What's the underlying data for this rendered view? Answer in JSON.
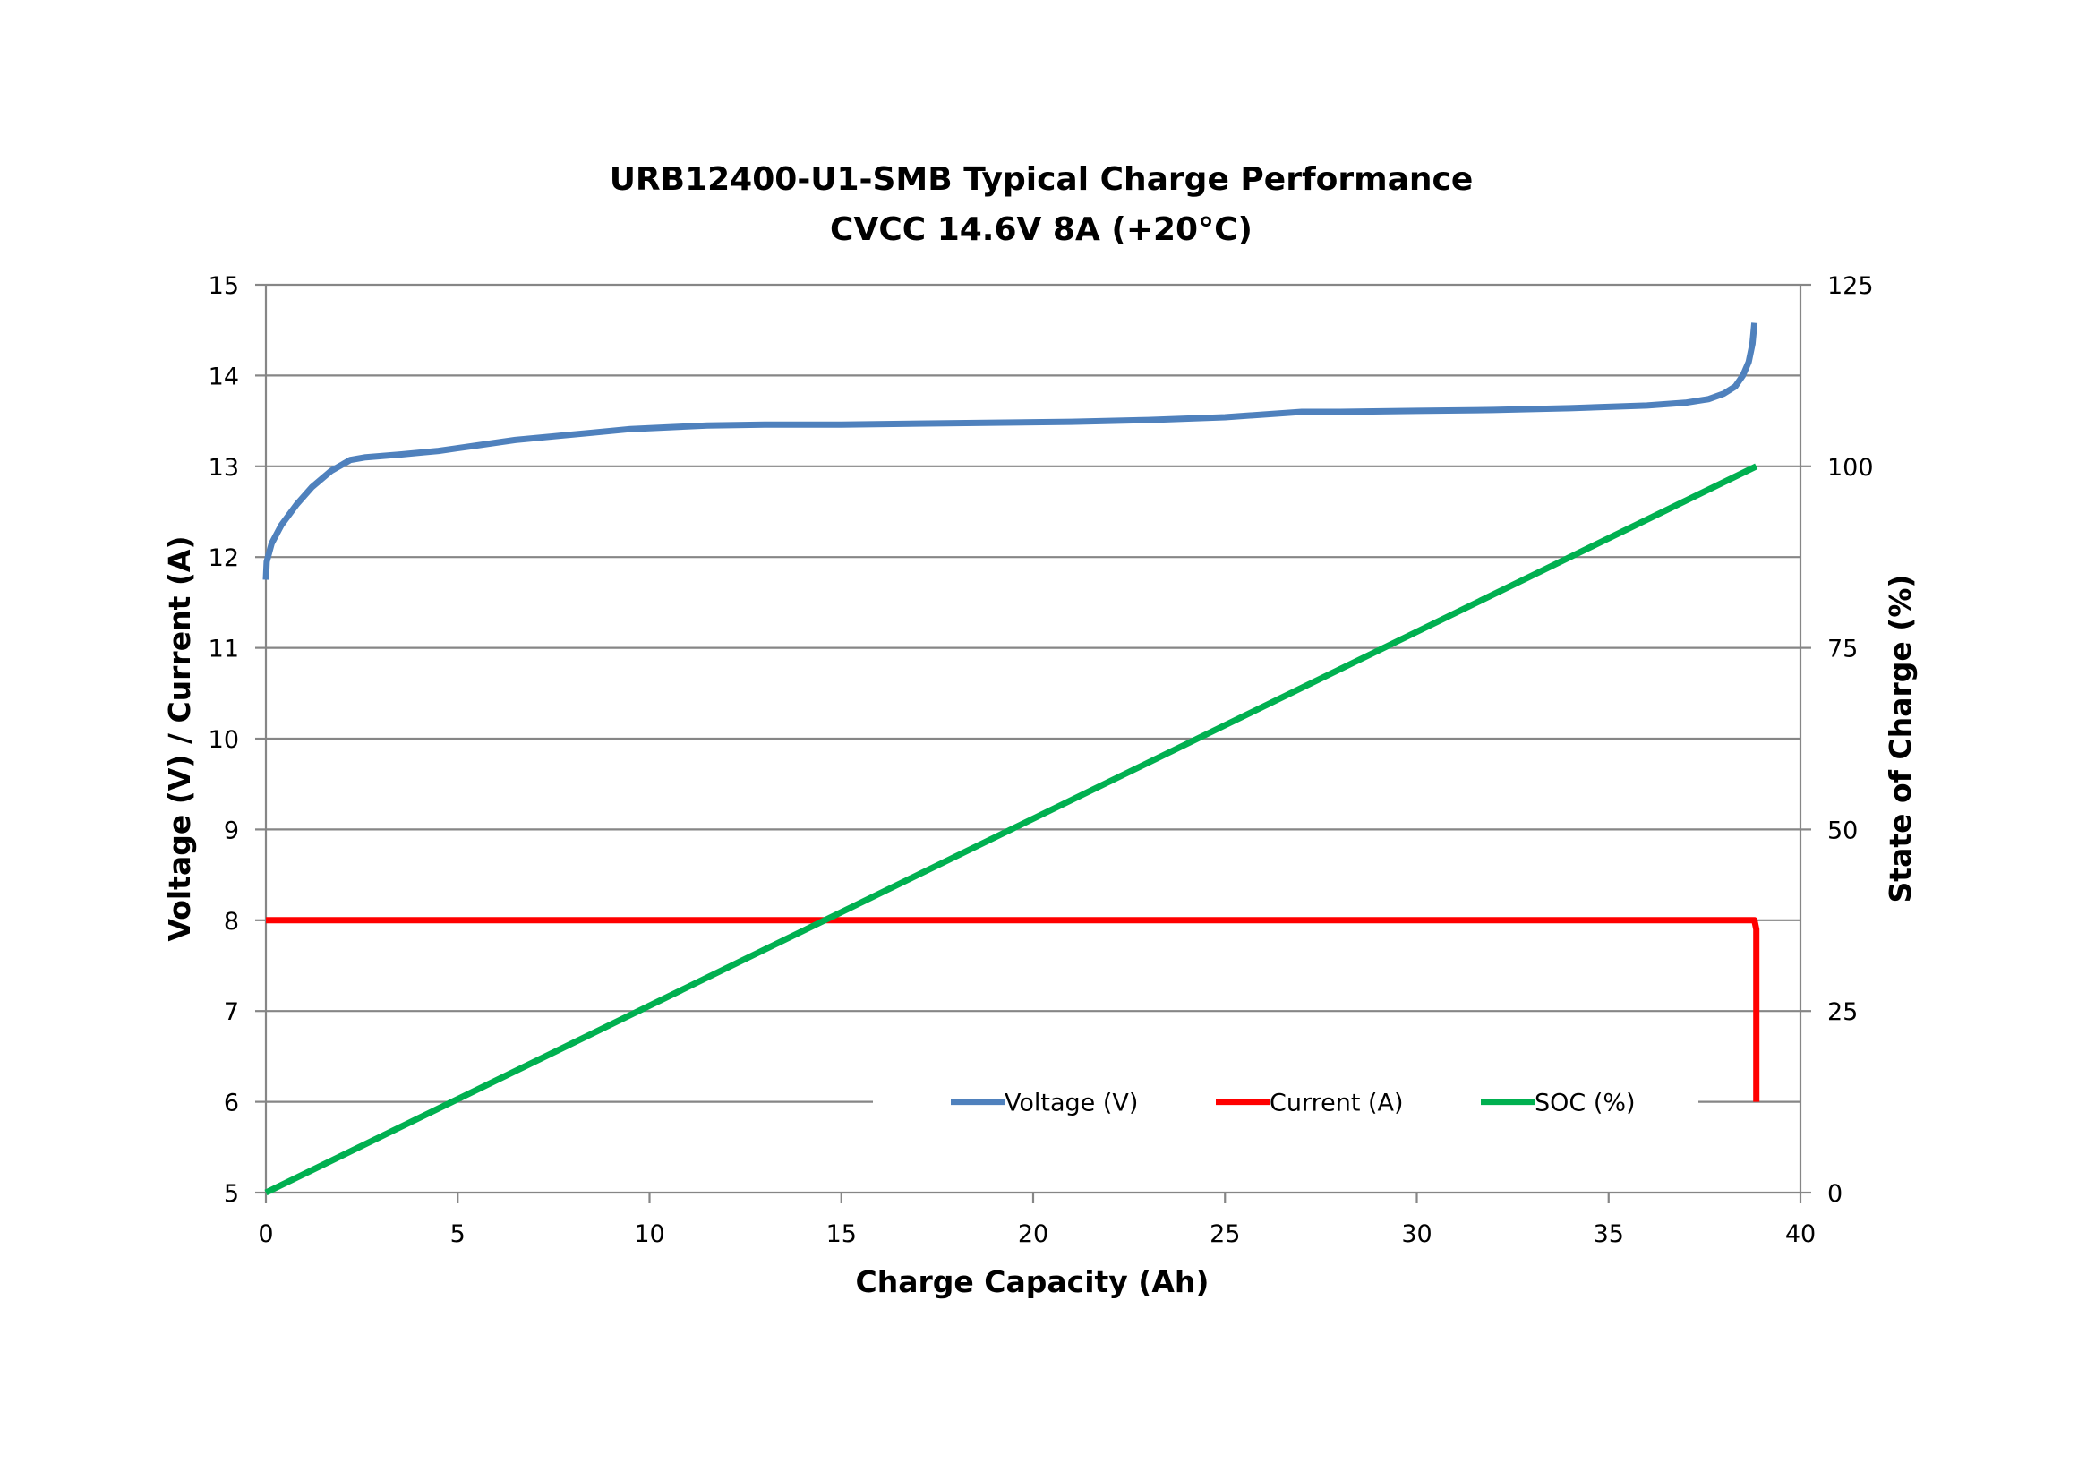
{
  "chart_data": {
    "type": "line",
    "title": "URB12400-U1-SMB Typical Charge Performance",
    "subtitle": "CVCC 14.6V 8A (+20°C)",
    "xlabel": "Charge Capacity (Ah)",
    "ylabel": "Voltage (V) / Current (A)",
    "y2label": "State of Charge (%)",
    "xlim": [
      0,
      40
    ],
    "ylim": [
      5,
      15
    ],
    "y2lim": [
      0,
      125
    ],
    "x_ticks": [
      "0",
      "5",
      "10",
      "15",
      "20",
      "25",
      "30",
      "35",
      "40"
    ],
    "y_ticks": [
      "5",
      "6",
      "7",
      "8",
      "9",
      "10",
      "11",
      "12",
      "13",
      "14",
      "15"
    ],
    "y2_ticks": [
      "0",
      "25",
      "50",
      "75",
      "100",
      "125"
    ],
    "grid": "horizontal",
    "legend_position": "bottom-inside",
    "series": [
      {
        "name": "Voltage (V)",
        "axis": "left",
        "color": "#4f81bd",
        "points": [
          [
            0,
            11.75
          ],
          [
            0.02,
            11.95
          ],
          [
            0.15,
            12.15
          ],
          [
            0.4,
            12.35
          ],
          [
            0.8,
            12.58
          ],
          [
            1.2,
            12.77
          ],
          [
            1.7,
            12.95
          ],
          [
            2.2,
            13.07
          ],
          [
            2.6,
            13.1
          ],
          [
            3.5,
            13.13
          ],
          [
            4.5,
            13.17
          ],
          [
            5.5,
            13.23
          ],
          [
            6.5,
            13.29
          ],
          [
            7.5,
            13.33
          ],
          [
            8.5,
            13.37
          ],
          [
            9.5,
            13.41
          ],
          [
            10.5,
            13.43
          ],
          [
            11.5,
            13.45
          ],
          [
            13,
            13.46
          ],
          [
            15,
            13.46
          ],
          [
            17,
            13.47
          ],
          [
            19,
            13.48
          ],
          [
            21,
            13.49
          ],
          [
            23,
            13.51
          ],
          [
            25,
            13.54
          ],
          [
            26,
            13.57
          ],
          [
            27,
            13.6
          ],
          [
            28,
            13.6
          ],
          [
            30,
            13.61
          ],
          [
            32,
            13.62
          ],
          [
            34,
            13.64
          ],
          [
            36,
            13.67
          ],
          [
            37,
            13.7
          ],
          [
            37.6,
            13.74
          ],
          [
            38,
            13.8
          ],
          [
            38.3,
            13.88
          ],
          [
            38.5,
            14.0
          ],
          [
            38.65,
            14.15
          ],
          [
            38.75,
            14.35
          ],
          [
            38.8,
            14.58
          ]
        ]
      },
      {
        "name": "Current (A)",
        "axis": "left",
        "color": "#ff0000",
        "points": [
          [
            0,
            8
          ],
          [
            38.8,
            8
          ],
          [
            38.85,
            7.9
          ],
          [
            38.85,
            6.0
          ]
        ]
      },
      {
        "name": "SOC (%)",
        "axis": "right",
        "color": "#00b050",
        "points": [
          [
            0,
            0
          ],
          [
            38.85,
            100
          ]
        ]
      }
    ]
  }
}
